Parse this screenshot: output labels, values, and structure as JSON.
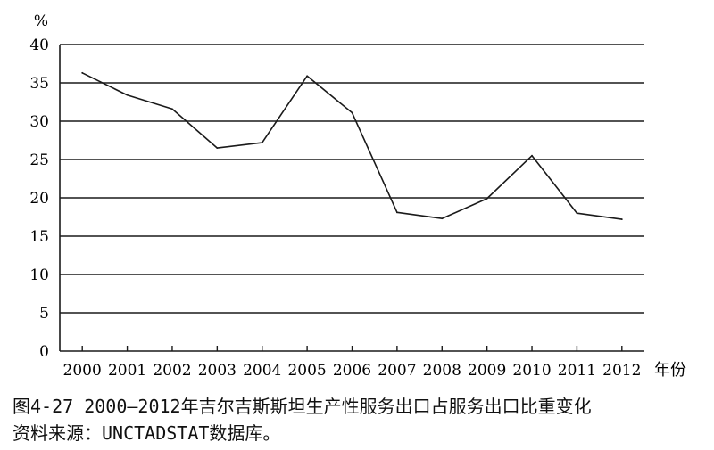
{
  "chart_data": {
    "type": "line",
    "y_unit_label": "%",
    "x_unit_label": "年份",
    "categories": [
      "2000",
      "2001",
      "2002",
      "2003",
      "2004",
      "2005",
      "2006",
      "2007",
      "2008",
      "2009",
      "2010",
      "2011",
      "2012"
    ],
    "series": [
      {
        "values": [
          36.3,
          33.4,
          31.6,
          26.5,
          27.2,
          35.9,
          31.1,
          18.1,
          17.3,
          19.9,
          25.5,
          18.0,
          17.2
        ]
      }
    ],
    "ylim": [
      0,
      40
    ],
    "yticks": [
      0,
      5,
      10,
      15,
      20,
      25,
      30,
      35,
      40
    ],
    "grid": "horizontal",
    "line_color": "#1a1a1a"
  },
  "caption": {
    "figure_title": "图4-27  2000—2012年吉尔吉斯斯坦生产性服务出口占服务出口比重变化",
    "source": "资料来源：UNCTADSTAT数据库。"
  }
}
